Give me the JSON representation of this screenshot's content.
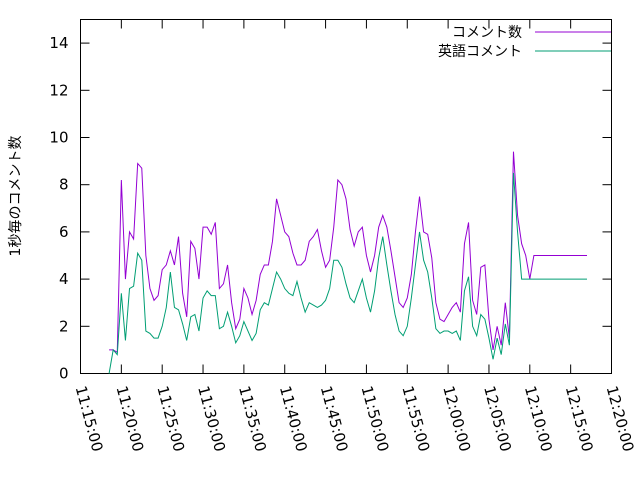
{
  "chart_data": {
    "type": "line",
    "ylabel": "1秒毎のコメント数",
    "xlabel": "",
    "title": "",
    "ylim": [
      0,
      15
    ],
    "yticks": [
      0,
      2,
      4,
      6,
      8,
      10,
      12,
      14
    ],
    "xlim": [
      "11:15:00",
      "12:20:00"
    ],
    "xticks": [
      "11:15:00",
      "11:20:00",
      "11:25:00",
      "11:30:00",
      "11:35:00",
      "11:40:00",
      "11:45:00",
      "11:50:00",
      "11:55:00",
      "12:00:00",
      "12:05:00",
      "12:10:00",
      "12:15:00",
      "12:20:00"
    ],
    "grid": false,
    "legend_position": "top-right",
    "series": [
      {
        "name": "コメント数",
        "color": "#9400d3",
        "x": [
          "11:18:30",
          "11:19:00",
          "11:19:30",
          "11:20:00",
          "11:20:30",
          "11:21:00",
          "11:21:30",
          "11:22:00",
          "11:22:30",
          "11:23:00",
          "11:23:30",
          "11:24:00",
          "11:24:30",
          "11:25:00",
          "11:25:30",
          "11:26:00",
          "11:26:30",
          "11:27:00",
          "11:27:30",
          "11:28:00",
          "11:28:30",
          "11:29:00",
          "11:29:30",
          "11:30:00",
          "11:30:30",
          "11:31:00",
          "11:31:30",
          "11:32:00",
          "11:32:30",
          "11:33:00",
          "11:33:30",
          "11:34:00",
          "11:34:30",
          "11:35:00",
          "11:35:30",
          "11:36:00",
          "11:36:30",
          "11:37:00",
          "11:37:30",
          "11:38:00",
          "11:38:30",
          "11:39:00",
          "11:39:30",
          "11:40:00",
          "11:40:30",
          "11:41:00",
          "11:41:30",
          "11:42:00",
          "11:42:30",
          "11:43:00",
          "11:43:30",
          "11:44:00",
          "11:44:30",
          "11:45:00",
          "11:45:30",
          "11:46:00",
          "11:46:30",
          "11:47:00",
          "11:47:30",
          "11:48:00",
          "11:48:30",
          "11:49:00",
          "11:49:30",
          "11:50:00",
          "11:50:30",
          "11:51:00",
          "11:51:30",
          "11:52:00",
          "11:52:30",
          "11:53:00",
          "11:53:30",
          "11:54:00",
          "11:54:30",
          "11:55:00",
          "11:55:30",
          "11:56:00",
          "11:56:30",
          "11:57:00",
          "11:57:30",
          "11:58:00",
          "11:58:30",
          "11:59:00",
          "11:59:30",
          "12:00:00",
          "12:00:30",
          "12:01:00",
          "12:01:30",
          "12:02:00",
          "12:02:30",
          "12:03:00",
          "12:03:30",
          "12:04:00",
          "12:04:30",
          "12:05:00",
          "12:05:30",
          "12:06:00",
          "12:06:30",
          "12:07:00",
          "12:07:30",
          "12:08:00",
          "12:08:30",
          "12:09:00",
          "12:09:30",
          "12:10:00",
          "12:10:30",
          "12:11:00",
          "12:11:30",
          "12:12:00",
          "12:12:30",
          "12:13:00",
          "12:13:30",
          "12:14:00",
          "12:14:30",
          "12:15:00",
          "12:15:30",
          "12:16:00",
          "12:16:30",
          "12:17:00"
        ],
        "values": [
          1.0,
          1.0,
          0.9,
          8.2,
          4.0,
          6.0,
          5.7,
          8.9,
          8.7,
          5.0,
          3.6,
          3.1,
          3.3,
          4.4,
          4.6,
          5.2,
          4.6,
          5.8,
          3.4,
          2.4,
          5.6,
          5.3,
          4.0,
          6.2,
          6.2,
          5.9,
          6.4,
          3.6,
          3.8,
          4.6,
          3.0,
          1.9,
          2.3,
          3.6,
          3.2,
          2.5,
          3.1,
          4.2,
          4.6,
          4.6,
          5.6,
          7.4,
          6.7,
          6.0,
          5.8,
          5.1,
          4.6,
          4.6,
          4.8,
          5.6,
          5.8,
          6.1,
          5.2,
          4.5,
          4.8,
          6.2,
          8.2,
          8.0,
          7.4,
          6.1,
          5.4,
          6.0,
          6.2,
          5.0,
          4.3,
          5.0,
          6.2,
          6.7,
          6.2,
          5.2,
          4.1,
          3.0,
          2.8,
          3.2,
          4.2,
          6.0,
          7.5,
          6.0,
          5.9,
          4.9,
          3.0,
          2.3,
          2.2,
          2.5,
          2.8,
          3.0,
          2.6,
          5.5,
          6.4,
          3.1,
          2.5,
          4.5,
          4.6,
          2.3,
          1.0,
          2.0,
          1.2,
          3.0,
          1.5,
          9.4,
          6.7,
          5.5,
          5.0,
          4.0,
          5.0,
          5.0,
          5.0,
          5.0,
          5.0,
          5.0,
          5.0,
          5.0,
          5.0,
          5.0,
          5.0,
          5.0,
          5.0,
          5.0
        ]
      },
      {
        "name": "英語コメント",
        "color": "#009e73",
        "x": [
          "11:18:30",
          "11:19:00",
          "11:19:30",
          "11:20:00",
          "11:20:30",
          "11:21:00",
          "11:21:30",
          "11:22:00",
          "11:22:30",
          "11:23:00",
          "11:23:30",
          "11:24:00",
          "11:24:30",
          "11:25:00",
          "11:25:30",
          "11:26:00",
          "11:26:30",
          "11:27:00",
          "11:27:30",
          "11:28:00",
          "11:28:30",
          "11:29:00",
          "11:29:30",
          "11:30:00",
          "11:30:30",
          "11:31:00",
          "11:31:30",
          "11:32:00",
          "11:32:30",
          "11:33:00",
          "11:33:30",
          "11:34:00",
          "11:34:30",
          "11:35:00",
          "11:35:30",
          "11:36:00",
          "11:36:30",
          "11:37:00",
          "11:37:30",
          "11:38:00",
          "11:38:30",
          "11:39:00",
          "11:39:30",
          "11:40:00",
          "11:40:30",
          "11:41:00",
          "11:41:30",
          "11:42:00",
          "11:42:30",
          "11:43:00",
          "11:43:30",
          "11:44:00",
          "11:44:30",
          "11:45:00",
          "11:45:30",
          "11:46:00",
          "11:46:30",
          "11:47:00",
          "11:47:30",
          "11:48:00",
          "11:48:30",
          "11:49:00",
          "11:49:30",
          "11:50:00",
          "11:50:30",
          "11:51:00",
          "11:51:30",
          "11:52:00",
          "11:52:30",
          "11:53:00",
          "11:53:30",
          "11:54:00",
          "11:54:30",
          "11:55:00",
          "11:55:30",
          "11:56:00",
          "11:56:30",
          "11:57:00",
          "11:57:30",
          "11:58:00",
          "11:58:30",
          "11:59:00",
          "11:59:30",
          "12:00:00",
          "12:00:30",
          "12:01:00",
          "12:01:30",
          "12:02:00",
          "12:02:30",
          "12:03:00",
          "12:03:30",
          "12:04:00",
          "12:04:30",
          "12:05:00",
          "12:05:30",
          "12:06:00",
          "12:06:30",
          "12:07:00",
          "12:07:30",
          "12:08:00",
          "12:08:30",
          "12:09:00",
          "12:09:30",
          "12:10:00",
          "12:10:30",
          "12:11:00",
          "12:11:30",
          "12:12:00",
          "12:12:30",
          "12:13:00",
          "12:13:30",
          "12:14:00",
          "12:14:30",
          "12:15:00",
          "12:15:30",
          "12:16:00",
          "12:16:30",
          "12:17:00"
        ],
        "values": [
          0.0,
          1.0,
          0.8,
          3.4,
          1.4,
          3.6,
          3.7,
          5.1,
          4.8,
          1.8,
          1.7,
          1.5,
          1.5,
          2.0,
          2.8,
          4.3,
          2.8,
          2.7,
          2.1,
          1.4,
          2.4,
          2.5,
          1.8,
          3.2,
          3.5,
          3.3,
          3.3,
          1.9,
          2.0,
          2.6,
          2.0,
          1.3,
          1.6,
          2.2,
          1.8,
          1.4,
          1.7,
          2.7,
          3.0,
          2.9,
          3.6,
          4.3,
          4.0,
          3.6,
          3.4,
          3.3,
          3.9,
          3.2,
          2.6,
          3.0,
          2.9,
          2.8,
          2.9,
          3.1,
          3.6,
          4.8,
          4.8,
          4.5,
          3.8,
          3.2,
          3.0,
          3.5,
          4.0,
          3.2,
          2.6,
          3.5,
          4.9,
          5.8,
          4.6,
          3.5,
          2.5,
          1.8,
          1.6,
          2.0,
          3.2,
          4.6,
          6.0,
          4.8,
          4.3,
          3.2,
          1.9,
          1.7,
          1.8,
          1.8,
          1.7,
          1.8,
          1.4,
          3.5,
          4.1,
          2.0,
          1.6,
          2.5,
          2.3,
          1.5,
          0.6,
          1.5,
          0.8,
          2.1,
          1.2,
          8.5,
          6.0,
          4.0,
          4.0,
          4.0,
          4.0,
          4.0,
          4.0,
          4.0,
          4.0,
          4.0,
          4.0,
          4.0,
          4.0,
          4.0,
          4.0,
          4.0,
          4.0,
          4.0
        ]
      }
    ]
  }
}
